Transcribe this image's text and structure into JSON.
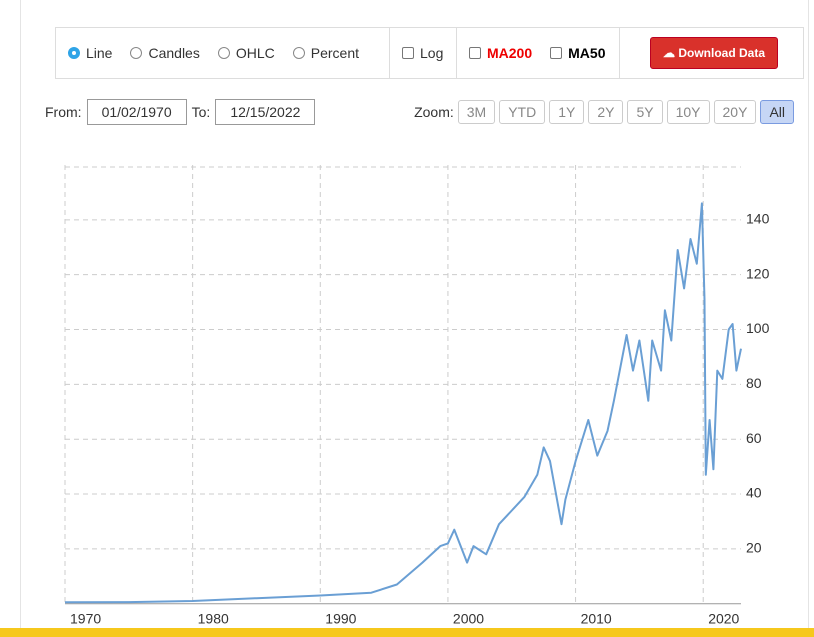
{
  "toolbar": {
    "chart_types": [
      "Line",
      "Candles",
      "OHLC",
      "Percent"
    ],
    "log": "Log",
    "ma200": "MA200",
    "ma50": "MA50",
    "download": "Download Data"
  },
  "range": {
    "from_label": "From:",
    "from": "01/02/1970",
    "to_label": "To:",
    "to": "12/15/2022"
  },
  "zoom": {
    "label": "Zoom:",
    "buttons": [
      "3M",
      "YTD",
      "1Y",
      "2Y",
      "5Y",
      "10Y",
      "20Y",
      "All"
    ]
  },
  "chart_data": {
    "type": "line",
    "color": "#6a9fd4",
    "grid": true,
    "log_scale": false,
    "x": [
      1970,
      1975,
      1980,
      1985,
      1990,
      1994,
      1996,
      1998,
      1999.4,
      2000,
      2000.5,
      2001.5,
      2002,
      2003,
      2004,
      2005,
      2006,
      2007,
      2007.5,
      2008,
      2008.9,
      2009.2,
      2010,
      2011,
      2011.7,
      2012.5,
      2013,
      2014,
      2014.5,
      2015,
      2015.7,
      2016,
      2016.7,
      2017,
      2017.5,
      2018,
      2018.5,
      2019,
      2019.5,
      2019.9,
      2020.1,
      2020.2,
      2020.5,
      2020.8,
      2021.1,
      2021.5,
      2022,
      2022.3,
      2022.6,
      2022.96
    ],
    "values": [
      0.5,
      0.6,
      1,
      2,
      3,
      4,
      7,
      15,
      21,
      22,
      27,
      15,
      21,
      18,
      29,
      34,
      39,
      47,
      57,
      52,
      29,
      38,
      52,
      67,
      54,
      63,
      74,
      98,
      85,
      96,
      74,
      96,
      85,
      107,
      96,
      129,
      115,
      133,
      124,
      146,
      111,
      47,
      67,
      49,
      85,
      82,
      100,
      102,
      85,
      93
    ],
    "xlim": [
      1970,
      2022.96
    ],
    "xticks": [
      1970,
      1980,
      1990,
      2000,
      2010,
      2020
    ],
    "ylim": [
      0,
      160
    ],
    "yticks": [
      20,
      40,
      60,
      80,
      100,
      120,
      140
    ]
  }
}
